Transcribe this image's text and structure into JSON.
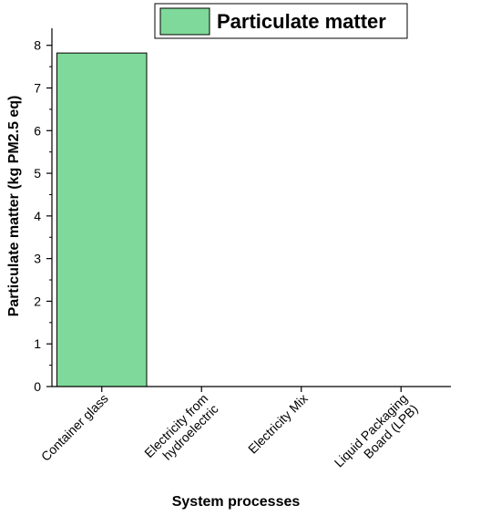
{
  "chart_data": {
    "type": "bar",
    "categories": [
      "Container glass",
      "Electricity from hydroelectric",
      "Electricity Mix",
      "Liquid Packaging Board (LPB)"
    ],
    "category_label_lines": [
      [
        "Container glass"
      ],
      [
        "Electricity from",
        "hydroelectric"
      ],
      [
        "Electricity Mix"
      ],
      [
        "Liquid Packaging",
        "Board (LPB)"
      ]
    ],
    "series": [
      {
        "name": "Particulate matter",
        "values": [
          7.82,
          0,
          0,
          0
        ],
        "color": "#7fd99a"
      }
    ],
    "xlabel": "System processes",
    "ylabel": "Particulate matter (kg PM2.5 eq)",
    "ylim": [
      0,
      8.4
    ],
    "yticks": [
      0,
      1,
      2,
      3,
      4,
      5,
      6,
      7,
      8
    ],
    "grid": false,
    "legend_position": "top-right"
  }
}
